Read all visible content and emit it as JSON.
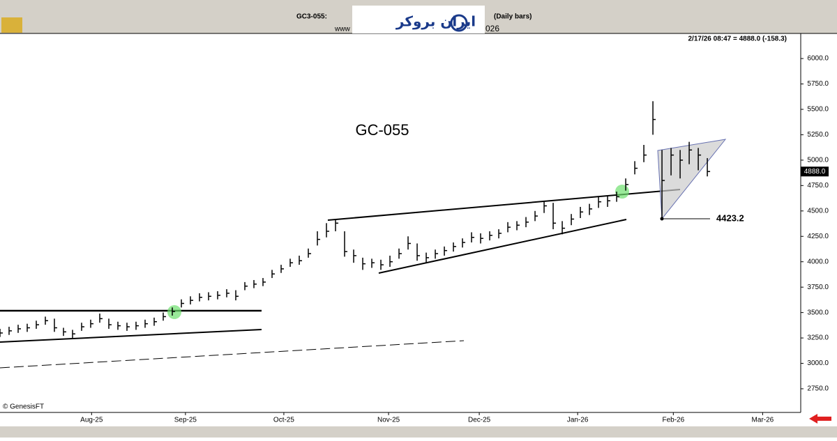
{
  "header": {
    "symbol": "GC3-055:",
    "bars": "(Daily bars)",
    "site": "www",
    "year": "026",
    "logo": "ایران بروکر"
  },
  "chart_data": {
    "type": "ohlc",
    "title": "GC-055",
    "quote": "2/17/26 08:47 = 4888.0 (-158.3)",
    "last_label": "4888.0",
    "annotation": "4423.2",
    "copyright": "© GenesisFT",
    "color": "#000000",
    "x": [
      0,
      2,
      4,
      6,
      8,
      10,
      12,
      14,
      16,
      18,
      20,
      22,
      24,
      26,
      28,
      30,
      32,
      34,
      36,
      38,
      40,
      42,
      44,
      46,
      48,
      50,
      52,
      54,
      56,
      58,
      60,
      62,
      64,
      66,
      68,
      70,
      72,
      74,
      76,
      78,
      80,
      82,
      84,
      86,
      88,
      90,
      92,
      94,
      96,
      98,
      100,
      102,
      104,
      106,
      108,
      110,
      112,
      114,
      116,
      118,
      120,
      122,
      124,
      126,
      128,
      130,
      132,
      134,
      136,
      138,
      140,
      142,
      144,
      146,
      148,
      150,
      152,
      154,
      156
    ],
    "close": [
      3299,
      3320,
      3340,
      3350,
      3380,
      3420,
      3350,
      3310,
      3290,
      3360,
      3390,
      3440,
      3380,
      3370,
      3360,
      3370,
      3390,
      3410,
      3460,
      3510,
      3590,
      3620,
      3650,
      3660,
      3670,
      3690,
      3660,
      3760,
      3780,
      3800,
      3880,
      3930,
      3990,
      4010,
      4080,
      4220,
      4300,
      4380,
      4100,
      4060,
      3980,
      3990,
      3970,
      4000,
      4080,
      4180,
      4060,
      4040,
      4080,
      4110,
      4150,
      4190,
      4240,
      4230,
      4260,
      4280,
      4340,
      4360,
      4390,
      4450,
      4550,
      4380,
      4330,
      4420,
      4490,
      4520,
      4590,
      4600,
      4640,
      4760,
      4920,
      5050,
      5400,
      4800,
      5050,
      5000,
      5100,
      5050,
      4888
    ],
    "high": [
      3340,
      3360,
      3380,
      3390,
      3420,
      3460,
      3440,
      3350,
      3330,
      3400,
      3430,
      3490,
      3440,
      3410,
      3400,
      3410,
      3430,
      3450,
      3500,
      3550,
      3630,
      3660,
      3690,
      3700,
      3710,
      3730,
      3720,
      3800,
      3820,
      3840,
      3920,
      3970,
      4030,
      4060,
      4130,
      4300,
      4380,
      4420,
      4300,
      4120,
      4040,
      4030,
      4020,
      4060,
      4130,
      4250,
      4180,
      4090,
      4120,
      4150,
      4190,
      4230,
      4290,
      4280,
      4300,
      4320,
      4390,
      4400,
      4440,
      4500,
      4600,
      4580,
      4400,
      4470,
      4540,
      4570,
      4640,
      4650,
      4690,
      4820,
      4990,
      5150,
      5580,
      5100,
      5120,
      5100,
      5180,
      5120,
      5020
    ],
    "low": [
      3260,
      3280,
      3300,
      3310,
      3340,
      3380,
      3310,
      3270,
      3250,
      3320,
      3350,
      3400,
      3340,
      3330,
      3320,
      3330,
      3350,
      3370,
      3420,
      3470,
      3550,
      3580,
      3610,
      3620,
      3630,
      3650,
      3620,
      3720,
      3740,
      3760,
      3840,
      3890,
      3950,
      3970,
      4040,
      4160,
      4240,
      4300,
      4050,
      3990,
      3920,
      3940,
      3920,
      3950,
      4030,
      4120,
      4010,
      3990,
      4030,
      4060,
      4100,
      4140,
      4190,
      4180,
      4210,
      4230,
      4290,
      4310,
      4340,
      4400,
      4480,
      4320,
      4270,
      4360,
      4430,
      4460,
      4530,
      4540,
      4590,
      4700,
      4860,
      4980,
      5250,
      4423,
      4850,
      4820,
      4960,
      4900,
      4840
    ],
    "xlim": [
      0,
      176.6
    ],
    "ylim": [
      2517,
      6247
    ],
    "xticks": [
      {
        "value": 20.2,
        "label": "Aug-25"
      },
      {
        "value": 40.9,
        "label": "Sep-25"
      },
      {
        "value": 62.6,
        "label": "Oct-25"
      },
      {
        "value": 85.7,
        "label": "Nov-25"
      },
      {
        "value": 105.7,
        "label": "Dec-25"
      },
      {
        "value": 127.4,
        "label": "Jan-26"
      },
      {
        "value": 148.5,
        "label": "Feb-26"
      },
      {
        "value": 168.2,
        "label": "Mar-26"
      }
    ],
    "yticks": [
      {
        "value": 2750,
        "label": "2750.0"
      },
      {
        "value": 3000,
        "label": "3000.0"
      },
      {
        "value": 3250,
        "label": "3250.0"
      },
      {
        "value": 3500,
        "label": "3500.0"
      },
      {
        "value": 3750,
        "label": "3750.0"
      },
      {
        "value": 4000,
        "label": "4000.0"
      },
      {
        "value": 4250,
        "label": "4250.0"
      },
      {
        "value": 4500,
        "label": "4500.0"
      },
      {
        "value": 4750,
        "label": "4750.0"
      },
      {
        "value": 5000,
        "label": "5000.0"
      },
      {
        "value": 5250,
        "label": "5250.0"
      },
      {
        "value": 5500,
        "label": "5500.0"
      },
      {
        "value": 5750,
        "label": "5750.0"
      },
      {
        "value": 6000,
        "label": "6000.0"
      }
    ]
  }
}
